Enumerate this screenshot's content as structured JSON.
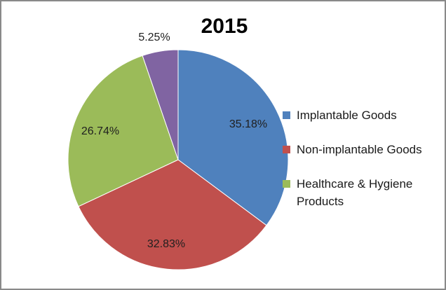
{
  "chart_data": {
    "type": "pie",
    "title": "2015",
    "categories": [
      "Implantable Goods",
      "Non-implantable Goods",
      "Healthcare & Hygiene Products",
      ""
    ],
    "values": [
      35.18,
      32.83,
      26.74,
      5.25
    ],
    "slices": [
      {
        "label": "Implantable Goods",
        "value": 35.18,
        "display": "35.18%",
        "color": "#4f81bd"
      },
      {
        "label": "Non-implantable Goods",
        "value": 32.83,
        "display": "32.83%",
        "color": "#c0504d"
      },
      {
        "label": "Healthcare & Hygiene Products",
        "value": 26.74,
        "display": "26.74%",
        "color": "#9bbb59"
      },
      {
        "label": "",
        "value": 5.25,
        "display": "5.25%",
        "color": "#8064a2"
      }
    ],
    "start_angle_deg": 0,
    "direction": "clockwise",
    "slice_border_color": "#ffffff",
    "legend_position": "right",
    "legend": [
      {
        "label": "Implantable Goods",
        "color": "#4f81bd"
      },
      {
        "label": "Non-implantable Goods",
        "color": "#c0504d"
      },
      {
        "label": "Healthcare & Hygiene Products",
        "color": "#9bbb59"
      }
    ]
  },
  "colors": {
    "frame_border": "#898989",
    "background": "#ffffff",
    "title_text": "#000000",
    "label_text": "#1f1f1f"
  }
}
